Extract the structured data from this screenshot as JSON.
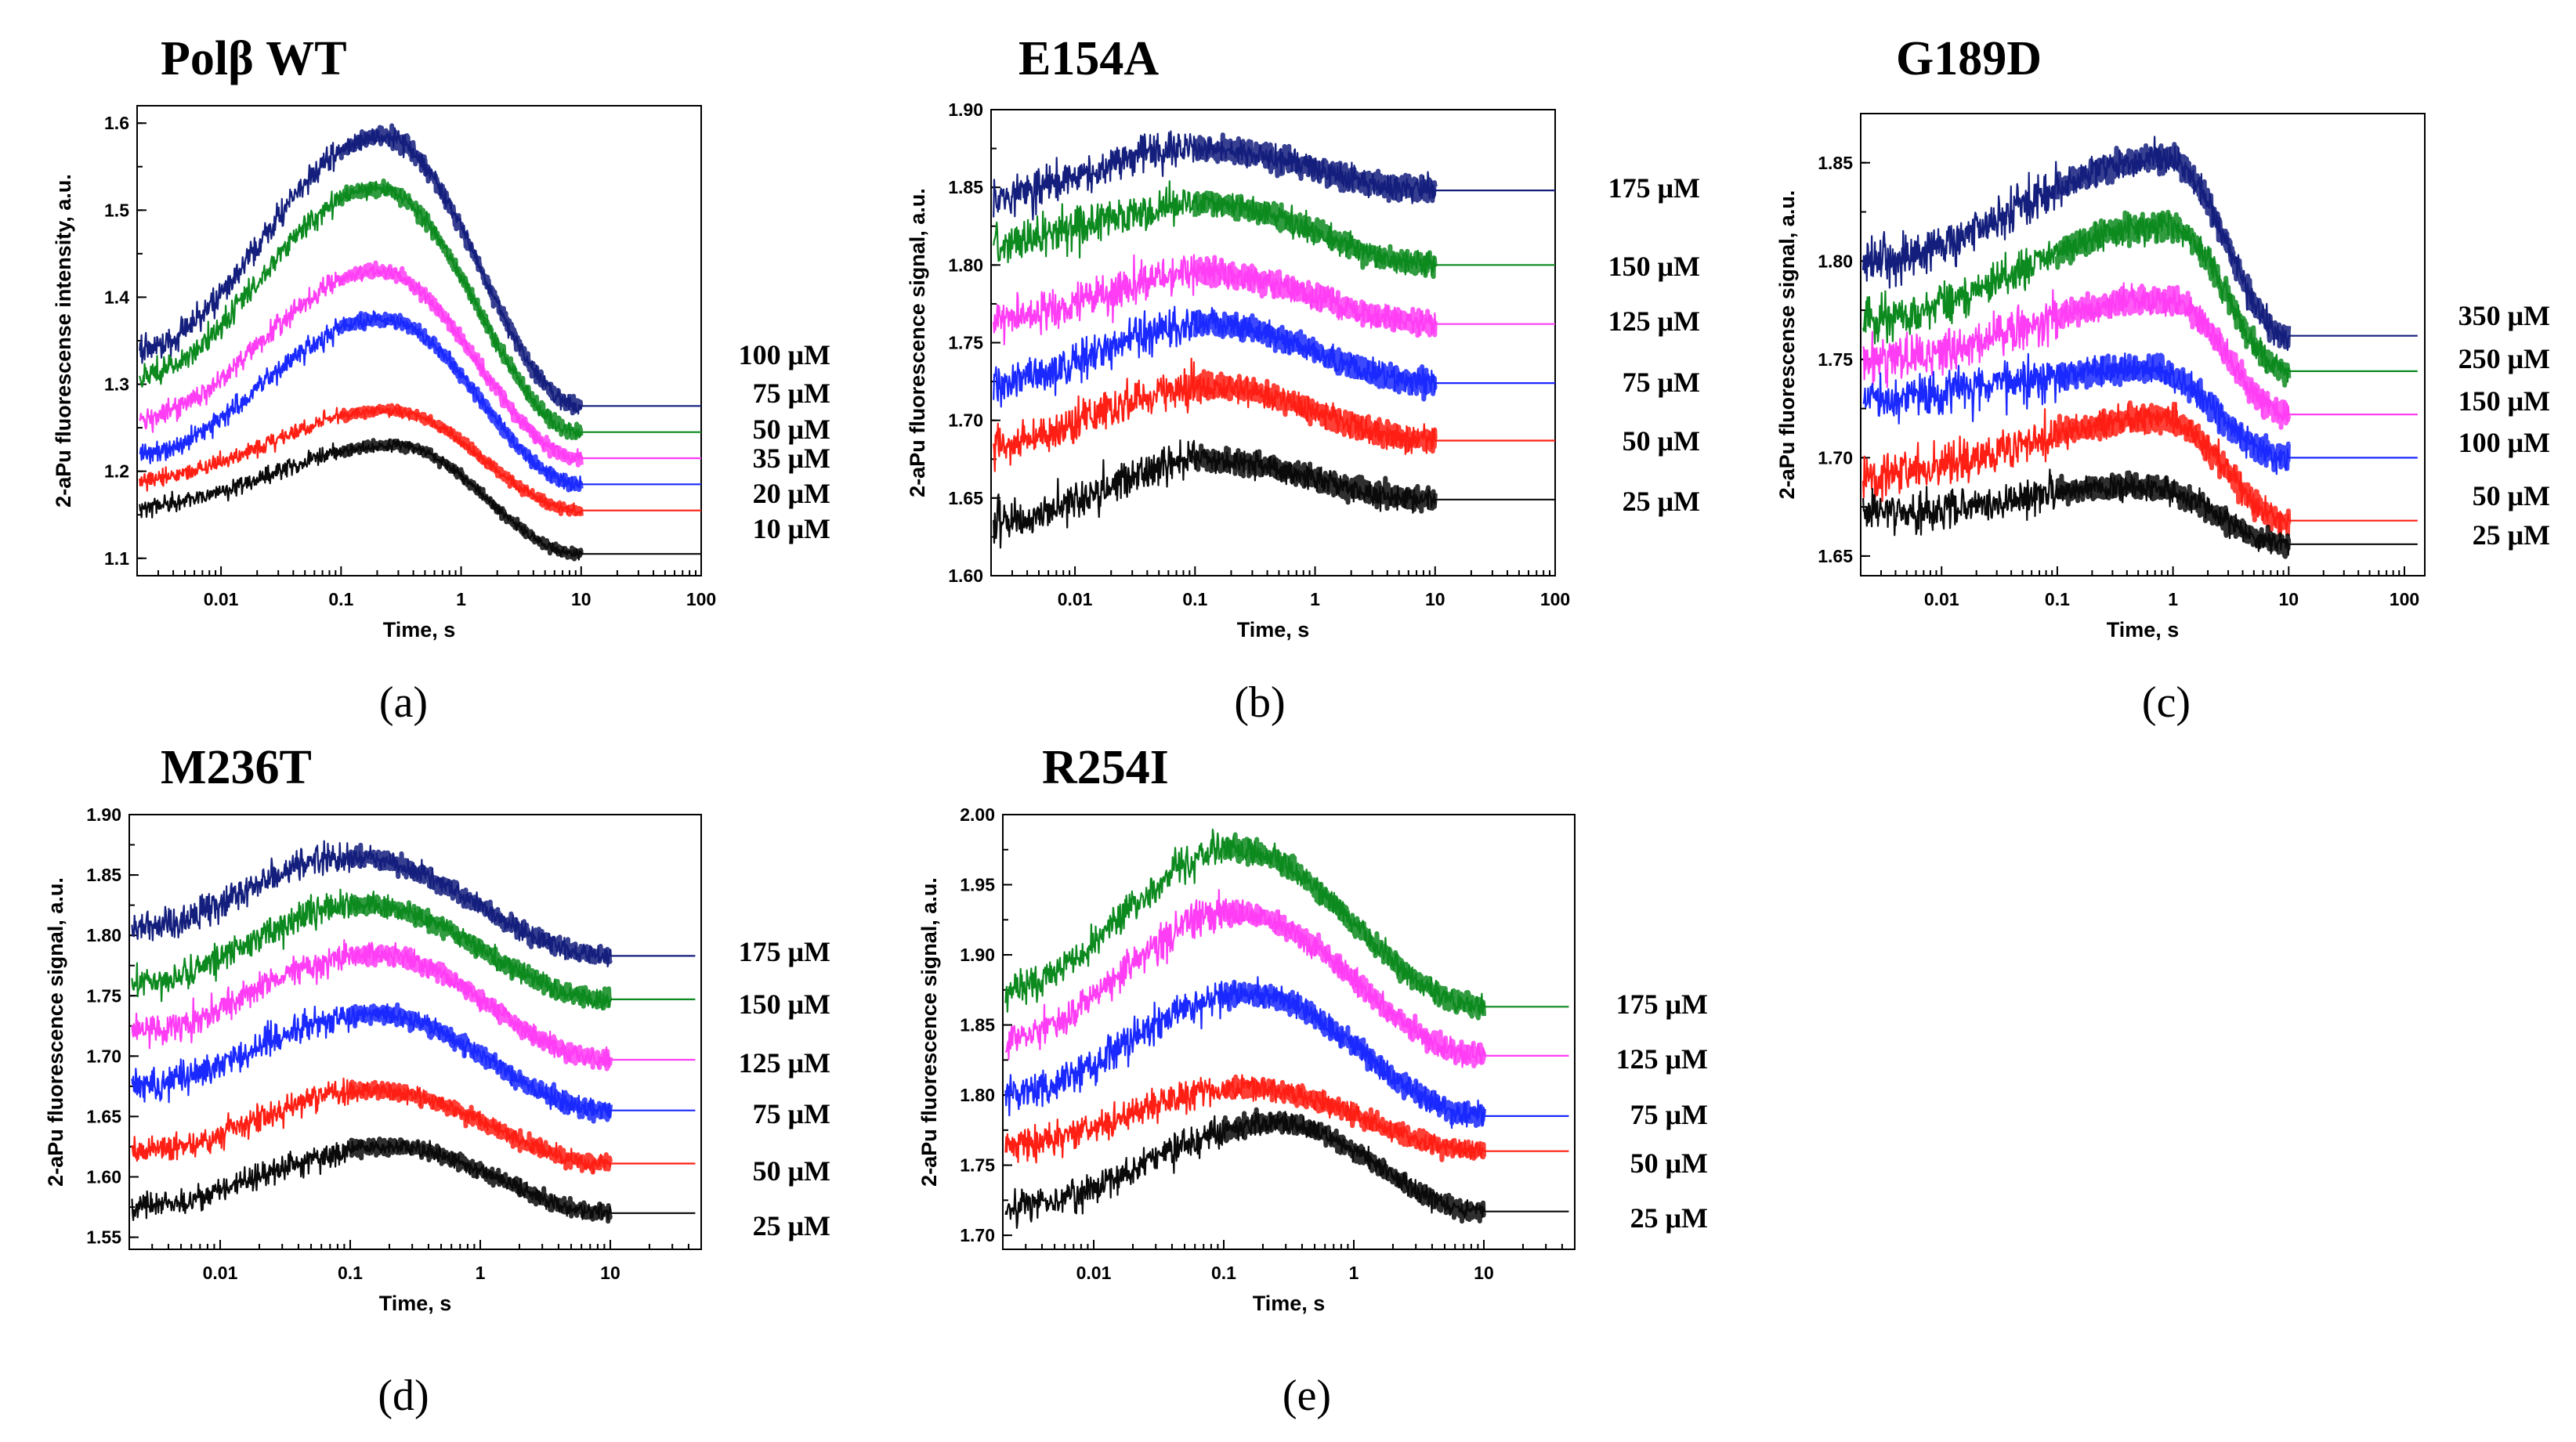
{
  "colors": {
    "navy": "#141f7d",
    "green": "#0d8a1f",
    "magenta": "#ff3df5",
    "blue": "#1a29ff",
    "red": "#ff1f14",
    "black": "#0a0a0a"
  },
  "chart_data": [
    {
      "type": "line",
      "title": "Polβ WT",
      "panel_label": "(a)",
      "xscale": "log",
      "xlabel": "Time, s",
      "ylabel": "2-aPu fluorescense intensity, a.u.",
      "xlim": [
        0.002,
        100
      ],
      "ylim": [
        1.08,
        1.62
      ],
      "xticks": [
        0.01,
        0.1,
        1,
        10,
        100
      ],
      "xtick_labels": [
        "0.01",
        "0.1",
        "1",
        "10",
        "100"
      ],
      "yticks": [
        1.1,
        1.2,
        1.3,
        1.4,
        1.5,
        1.6
      ],
      "ytick_labels": [
        "1.1",
        "1.2",
        "1.3",
        "1.4",
        "1.5",
        "1.6"
      ],
      "series": [
        {
          "name": "100 μM",
          "color": "navy",
          "start": 1.34,
          "peak": 1.585,
          "peak_time": 0.22,
          "end": 1.275,
          "noise": 0.01
        },
        {
          "name": "75 μM",
          "color": "green",
          "start": 1.31,
          "peak": 1.525,
          "peak_time": 0.2,
          "end": 1.245,
          "noise": 0.009
        },
        {
          "name": "50 μM",
          "color": "magenta",
          "start": 1.26,
          "peak": 1.43,
          "peak_time": 0.2,
          "end": 1.215,
          "noise": 0.008
        },
        {
          "name": "35 μM",
          "color": "blue",
          "start": 1.22,
          "peak": 1.375,
          "peak_time": 0.22,
          "end": 1.185,
          "noise": 0.008
        },
        {
          "name": "20 μM",
          "color": "red",
          "start": 1.19,
          "peak": 1.27,
          "peak_time": 0.25,
          "end": 1.155,
          "noise": 0.006
        },
        {
          "name": "10 μM",
          "color": "black",
          "start": 1.16,
          "peak": 1.23,
          "peak_time": 0.28,
          "end": 1.105,
          "noise": 0.006
        }
      ]
    },
    {
      "type": "line",
      "title": "E154A",
      "panel_label": "(b)",
      "xscale": "log",
      "xlabel": "Time, s",
      "ylabel": "2-aPu fluorescence signal, a.u.",
      "xlim": [
        0.002,
        100
      ],
      "ylim": [
        1.6,
        1.9
      ],
      "xticks": [
        0.01,
        0.1,
        1,
        10,
        100
      ],
      "xtick_labels": [
        "0.01",
        "0.1",
        "1",
        "10",
        "100"
      ],
      "yticks": [
        1.6,
        1.65,
        1.7,
        1.75,
        1.8,
        1.85,
        1.9
      ],
      "ytick_labels": [
        "1.60",
        "1.65",
        "1.70",
        "1.75",
        "1.80",
        "1.85",
        "1.90"
      ],
      "series": [
        {
          "name": "175 μM",
          "color": "navy",
          "start": 1.845,
          "peak": 1.875,
          "peak_time": 0.1,
          "end": 1.848,
          "noise": 0.008
        },
        {
          "name": "150 μM",
          "color": "green",
          "start": 1.815,
          "peak": 1.84,
          "peak_time": 0.12,
          "end": 1.8,
          "noise": 0.008
        },
        {
          "name": "125 μM",
          "color": "magenta",
          "start": 1.765,
          "peak": 1.795,
          "peak_time": 0.12,
          "end": 1.762,
          "noise": 0.008
        },
        {
          "name": "75 μM",
          "color": "blue",
          "start": 1.725,
          "peak": 1.762,
          "peak_time": 0.12,
          "end": 1.724,
          "noise": 0.008
        },
        {
          "name": "50 μM",
          "color": "red",
          "start": 1.685,
          "peak": 1.722,
          "peak_time": 0.12,
          "end": 1.687,
          "noise": 0.008
        },
        {
          "name": "25 μM",
          "color": "black",
          "start": 1.635,
          "peak": 1.675,
          "peak_time": 0.12,
          "end": 1.649,
          "noise": 0.008
        }
      ]
    },
    {
      "type": "line",
      "title": "G189D",
      "panel_label": "(c)",
      "xscale": "log",
      "xlabel": "Time, s",
      "ylabel": "2-aPu fluorescense signal, a.u.",
      "xlim": [
        0.002,
        150
      ],
      "ylim": [
        1.64,
        1.875
      ],
      "xticks": [
        0.01,
        0.1,
        1,
        10,
        100
      ],
      "xtick_labels": [
        "0.01",
        "0.1",
        "1",
        "10",
        "100"
      ],
      "yticks": [
        1.65,
        1.7,
        1.75,
        1.8,
        1.85
      ],
      "ytick_labels": [
        "1.65",
        "1.70",
        "1.75",
        "1.80",
        "1.85"
      ],
      "series": [
        {
          "name": "350 μM",
          "color": "navy",
          "start": 1.8,
          "peak": 1.852,
          "peak_time": 0.9,
          "end": 1.762,
          "noise": 0.007
        },
        {
          "name": "250 μM",
          "color": "green",
          "start": 1.77,
          "peak": 1.818,
          "peak_time": 0.9,
          "end": 1.744,
          "noise": 0.007
        },
        {
          "name": "150 μM",
          "color": "magenta",
          "start": 1.75,
          "peak": 1.78,
          "peak_time": 0.9,
          "end": 1.722,
          "noise": 0.007
        },
        {
          "name": "100 μM",
          "color": "blue",
          "start": 1.73,
          "peak": 1.745,
          "peak_time": 0.6,
          "end": 1.7,
          "noise": 0.007
        },
        {
          "name": "50 μM",
          "color": "red",
          "start": 1.69,
          "peak": 1.72,
          "peak_time": 0.8,
          "end": 1.668,
          "noise": 0.007
        },
        {
          "name": "25 μM",
          "color": "black",
          "start": 1.672,
          "peak": 1.685,
          "peak_time": 0.6,
          "end": 1.656,
          "noise": 0.006
        }
      ]
    },
    {
      "type": "line",
      "title": "M236T",
      "panel_label": "(d)",
      "xscale": "log",
      "xlabel": "Time, s",
      "ylabel": "2-aPu fluorescence signal, a.u.",
      "xlim": [
        0.002,
        50
      ],
      "ylim": [
        1.54,
        1.9
      ],
      "xticks": [
        0.01,
        0.1,
        1,
        10
      ],
      "xtick_labels": [
        "0.01",
        "0.1",
        "1",
        "10"
      ],
      "yticks": [
        1.55,
        1.6,
        1.65,
        1.7,
        1.75,
        1.8,
        1.85,
        1.9
      ],
      "ytick_labels": [
        "1.55",
        "1.60",
        "1.65",
        "1.70",
        "1.75",
        "1.80",
        "1.85",
        "1.90"
      ],
      "series": [
        {
          "name": "175 μM",
          "color": "navy",
          "start": 1.805,
          "peak": 1.865,
          "peak_time": 0.1,
          "end": 1.783,
          "noise": 0.008
        },
        {
          "name": "150 μM",
          "color": "green",
          "start": 1.76,
          "peak": 1.825,
          "peak_time": 0.12,
          "end": 1.747,
          "noise": 0.008
        },
        {
          "name": "125 μM",
          "color": "magenta",
          "start": 1.72,
          "peak": 1.785,
          "peak_time": 0.15,
          "end": 1.697,
          "noise": 0.008
        },
        {
          "name": "75 μM",
          "color": "blue",
          "start": 1.675,
          "peak": 1.735,
          "peak_time": 0.15,
          "end": 1.655,
          "noise": 0.008
        },
        {
          "name": "50 μM",
          "color": "red",
          "start": 1.62,
          "peak": 1.672,
          "peak_time": 0.15,
          "end": 1.611,
          "noise": 0.007
        },
        {
          "name": "25 μM",
          "color": "black",
          "start": 1.575,
          "peak": 1.625,
          "peak_time": 0.2,
          "end": 1.57,
          "noise": 0.007
        }
      ]
    },
    {
      "type": "line",
      "title": "R254I",
      "panel_label": "(e)",
      "xscale": "log",
      "xlabel": "Time, s",
      "ylabel": "2-aPu fluorescence signal, a.u.",
      "xlim": [
        0.002,
        50
      ],
      "ylim": [
        1.69,
        2.0
      ],
      "xticks": [
        0.01,
        0.1,
        1,
        10
      ],
      "xtick_labels": [
        "0.01",
        "0.1",
        "1",
        "10"
      ],
      "yticks": [
        1.7,
        1.75,
        1.8,
        1.85,
        1.9,
        1.95,
        2.0
      ],
      "ytick_labels": [
        "1.70",
        "1.75",
        "1.80",
        "1.85",
        "1.90",
        "1.95",
        "2.00"
      ],
      "series": [
        {
          "name": "175 μM",
          "color": "green",
          "start": 1.875,
          "peak": 1.975,
          "peak_time": 0.12,
          "end": 1.863,
          "noise": 0.008
        },
        {
          "name": "125 μM",
          "color": "magenta",
          "start": 1.84,
          "peak": 1.93,
          "peak_time": 0.12,
          "end": 1.828,
          "noise": 0.008
        },
        {
          "name": "75 μM",
          "color": "blue",
          "start": 1.8,
          "peak": 1.872,
          "peak_time": 0.15,
          "end": 1.785,
          "noise": 0.008
        },
        {
          "name": "50 μM",
          "color": "red",
          "start": 1.765,
          "peak": 1.805,
          "peak_time": 0.15,
          "end": 1.76,
          "noise": 0.007
        },
        {
          "name": "25 μM",
          "color": "black",
          "start": 1.72,
          "peak": 1.78,
          "peak_time": 0.25,
          "end": 1.717,
          "noise": 0.007
        }
      ]
    }
  ]
}
